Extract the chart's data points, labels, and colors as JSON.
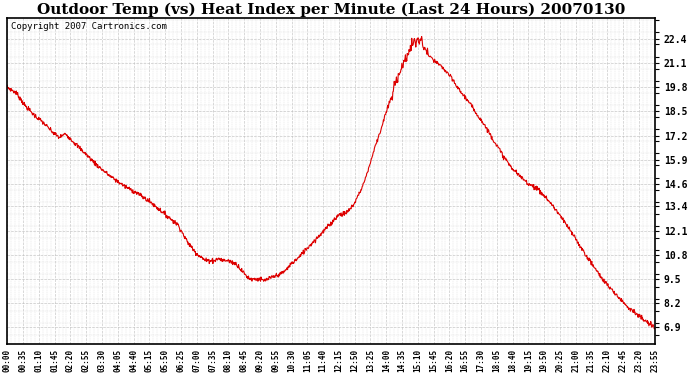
{
  "title": "Outdoor Temp (vs) Heat Index per Minute (Last 24 Hours) 20070130",
  "copyright_text": "Copyright 2007 Cartronics.com",
  "yticks": [
    6.9,
    8.2,
    9.5,
    10.8,
    12.1,
    13.4,
    14.6,
    15.9,
    17.2,
    18.5,
    19.8,
    21.1,
    22.4
  ],
  "ylim": [
    6.0,
    23.5
  ],
  "line_color": "#dd0000",
  "background_color": "#ffffff",
  "grid_color": "#bbbbbb",
  "title_fontsize": 11,
  "copyright_fontsize": 6.5,
  "xtick_labels": [
    "00:00",
    "00:35",
    "01:10",
    "01:45",
    "02:20",
    "02:55",
    "03:30",
    "04:05",
    "04:40",
    "05:15",
    "05:50",
    "06:25",
    "07:00",
    "07:35",
    "08:10",
    "08:45",
    "09:20",
    "09:55",
    "10:30",
    "11:05",
    "11:40",
    "12:15",
    "12:50",
    "13:25",
    "14:00",
    "14:35",
    "15:10",
    "15:45",
    "16:20",
    "16:55",
    "17:30",
    "18:05",
    "18:40",
    "19:15",
    "19:50",
    "20:25",
    "21:00",
    "21:35",
    "22:10",
    "22:45",
    "23:20",
    "23:55"
  ],
  "data_keypoints": [
    [
      0,
      19.8
    ],
    [
      20,
      19.5
    ],
    [
      40,
      18.8
    ],
    [
      60,
      18.3
    ],
    [
      80,
      17.9
    ],
    [
      100,
      17.4
    ],
    [
      115,
      17.1
    ],
    [
      130,
      17.3
    ],
    [
      150,
      16.8
    ],
    [
      175,
      16.2
    ],
    [
      200,
      15.6
    ],
    [
      230,
      15.0
    ],
    [
      260,
      14.5
    ],
    [
      290,
      14.1
    ],
    [
      320,
      13.6
    ],
    [
      350,
      13.0
    ],
    [
      380,
      12.4
    ],
    [
      400,
      11.5
    ],
    [
      410,
      11.2
    ],
    [
      420,
      10.9
    ],
    [
      430,
      10.7
    ],
    [
      440,
      10.5
    ],
    [
      450,
      10.5
    ],
    [
      460,
      10.5
    ],
    [
      470,
      10.6
    ],
    [
      480,
      10.5
    ],
    [
      490,
      10.5
    ],
    [
      500,
      10.4
    ],
    [
      510,
      10.3
    ],
    [
      520,
      10.0
    ],
    [
      530,
      9.7
    ],
    [
      540,
      9.5
    ],
    [
      550,
      9.5
    ],
    [
      560,
      9.5
    ],
    [
      570,
      9.4
    ],
    [
      580,
      9.5
    ],
    [
      590,
      9.6
    ],
    [
      600,
      9.7
    ],
    [
      610,
      9.8
    ],
    [
      620,
      10.0
    ],
    [
      630,
      10.3
    ],
    [
      640,
      10.5
    ],
    [
      650,
      10.7
    ],
    [
      660,
      11.0
    ],
    [
      680,
      11.5
    ],
    [
      700,
      12.0
    ],
    [
      720,
      12.5
    ],
    [
      730,
      12.8
    ],
    [
      740,
      13.0
    ],
    [
      750,
      13.0
    ],
    [
      760,
      13.2
    ],
    [
      770,
      13.5
    ],
    [
      780,
      14.0
    ],
    [
      790,
      14.5
    ],
    [
      800,
      15.2
    ],
    [
      810,
      16.0
    ],
    [
      820,
      16.8
    ],
    [
      830,
      17.5
    ],
    [
      840,
      18.3
    ],
    [
      850,
      19.0
    ],
    [
      855,
      19.3
    ],
    [
      860,
      19.8
    ],
    [
      865,
      20.2
    ],
    [
      870,
      20.5
    ],
    [
      875,
      20.8
    ],
    [
      880,
      21.0
    ],
    [
      885,
      21.3
    ],
    [
      890,
      21.6
    ],
    [
      895,
      21.8
    ],
    [
      900,
      22.1
    ],
    [
      905,
      22.3
    ],
    [
      910,
      22.1
    ],
    [
      912,
      22.4
    ],
    [
      915,
      22.2
    ],
    [
      917,
      22.4
    ],
    [
      920,
      22.3
    ],
    [
      925,
      22.0
    ],
    [
      930,
      21.8
    ],
    [
      935,
      21.6
    ],
    [
      940,
      21.4
    ],
    [
      945,
      21.3
    ],
    [
      950,
      21.2
    ],
    [
      960,
      21.0
    ],
    [
      970,
      20.8
    ],
    [
      980,
      20.5
    ],
    [
      990,
      20.2
    ],
    [
      1000,
      19.8
    ],
    [
      1020,
      19.2
    ],
    [
      1040,
      18.5
    ],
    [
      1060,
      17.8
    ],
    [
      1080,
      17.0
    ],
    [
      1100,
      16.2
    ],
    [
      1120,
      15.5
    ],
    [
      1140,
      15.0
    ],
    [
      1160,
      14.6
    ],
    [
      1170,
      14.5
    ],
    [
      1180,
      14.3
    ],
    [
      1200,
      13.8
    ],
    [
      1220,
      13.2
    ],
    [
      1240,
      12.5
    ],
    [
      1260,
      11.8
    ],
    [
      1280,
      11.0
    ],
    [
      1300,
      10.3
    ],
    [
      1320,
      9.6
    ],
    [
      1340,
      9.0
    ],
    [
      1360,
      8.5
    ],
    [
      1380,
      8.0
    ],
    [
      1400,
      7.6
    ],
    [
      1420,
      7.2
    ],
    [
      1439,
      6.9
    ]
  ]
}
